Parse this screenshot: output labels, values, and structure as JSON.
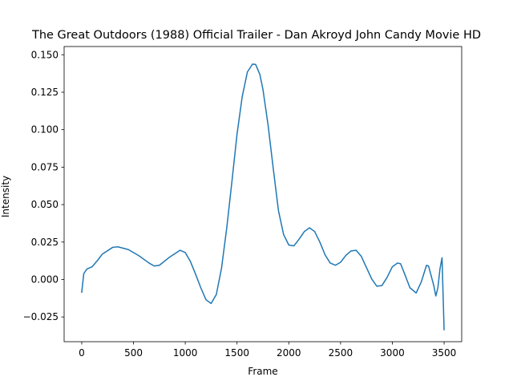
{
  "chart_data": {
    "type": "line",
    "title": "The Great Outdoors (1988) Official Trailer - Dan Akroyd John Candy Movie HD",
    "xlabel": "Frame",
    "ylabel": "Intensity",
    "xlim": [
      -170,
      3670
    ],
    "ylim": [
      -0.0415,
      0.1555
    ],
    "xticks": [
      0,
      500,
      1000,
      1500,
      2000,
      2500,
      3000,
      3500
    ],
    "yticks": [
      -0.025,
      0.0,
      0.025,
      0.05,
      0.075,
      0.1,
      0.125,
      0.15
    ],
    "xtick_labels": [
      "0",
      "500",
      "1000",
      "1500",
      "2000",
      "2500",
      "3000",
      "3500"
    ],
    "ytick_labels": [
      "−0.025",
      "0.000",
      "0.025",
      "0.050",
      "0.075",
      "0.100",
      "0.125",
      "0.150"
    ],
    "grid": false,
    "series": [
      {
        "color": "#1f77b4",
        "x": [
          0,
          20,
          50,
          100,
          150,
          200,
          300,
          350,
          450,
          550,
          650,
          700,
          750,
          850,
          950,
          1000,
          1050,
          1100,
          1150,
          1200,
          1250,
          1300,
          1350,
          1400,
          1450,
          1500,
          1550,
          1600,
          1650,
          1680,
          1720,
          1750,
          1800,
          1850,
          1900,
          1950,
          2000,
          2050,
          2100,
          2150,
          2200,
          2250,
          2300,
          2350,
          2400,
          2450,
          2500,
          2550,
          2600,
          2650,
          2700,
          2750,
          2800,
          2850,
          2900,
          2950,
          3000,
          3050,
          3080,
          3120,
          3170,
          3230,
          3280,
          3330,
          3350,
          3400,
          3420,
          3440,
          3460,
          3480,
          3500
        ],
        "y": [
          -0.0085,
          0.004,
          0.007,
          0.0085,
          0.0125,
          0.017,
          0.0215,
          0.0218,
          0.02,
          0.016,
          0.011,
          0.009,
          0.0095,
          0.015,
          0.0195,
          0.018,
          0.012,
          0.0035,
          -0.0055,
          -0.0135,
          -0.016,
          -0.01,
          0.0075,
          0.034,
          0.065,
          0.097,
          0.122,
          0.1385,
          0.1438,
          0.1435,
          0.137,
          0.127,
          0.103,
          0.074,
          0.046,
          0.03,
          0.023,
          0.0225,
          0.027,
          0.032,
          0.0345,
          0.032,
          0.025,
          0.0165,
          0.011,
          0.0095,
          0.0115,
          0.016,
          0.019,
          0.0195,
          0.0155,
          0.008,
          0.0005,
          -0.0045,
          -0.004,
          0.0015,
          0.0085,
          0.011,
          0.0105,
          0.0035,
          -0.0055,
          -0.009,
          -0.0015,
          0.0095,
          0.009,
          -0.004,
          -0.011,
          -0.0055,
          0.007,
          0.0145,
          -0.0335
        ]
      }
    ]
  }
}
